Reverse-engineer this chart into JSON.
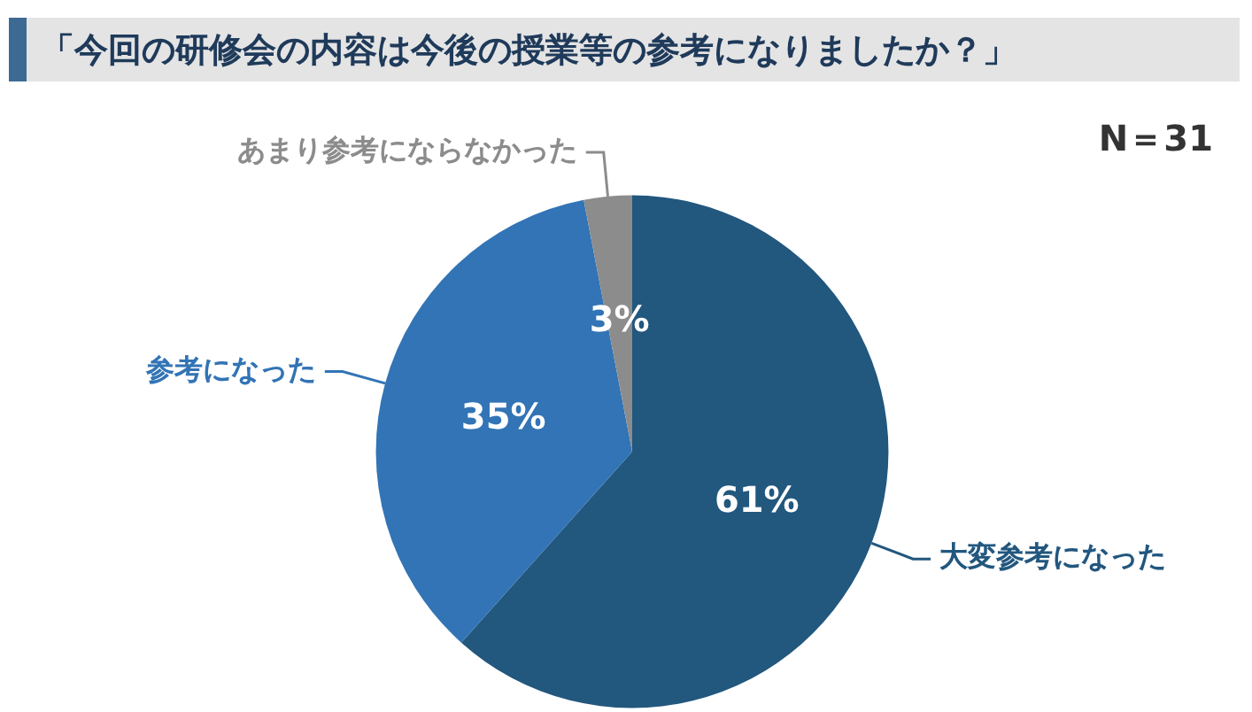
{
  "chart_data": {
    "type": "pie",
    "title": "「今回の研修会の内容は今後の授業等の参考になりましたか？」",
    "categories": [
      "大変参考になった",
      "参考になった",
      "あまり参考にならなかった"
    ],
    "values": [
      61,
      35,
      3
    ],
    "value_labels": [
      "61%",
      "35%",
      "3%"
    ],
    "colors": [
      "#22577e",
      "#3274b5",
      "#8c8c8c"
    ],
    "annotations": [
      "N＝31"
    ],
    "legend": false
  }
}
